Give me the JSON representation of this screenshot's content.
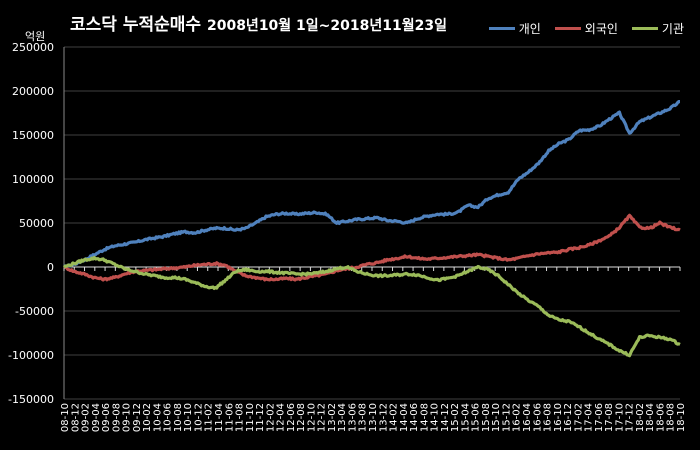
{
  "chart_data": {
    "type": "line",
    "title": "코스닥 누적순매수",
    "subtitle": "2008년10월 1일~2018년11월23일",
    "unit_label": "억원",
    "ylim": [
      -150000,
      250000
    ],
    "yticks": [
      250000,
      200000,
      150000,
      100000,
      50000,
      0,
      -50000,
      -100000,
      -150000
    ],
    "grid": true,
    "legend_position": "top-right",
    "x_ticks": [
      "08-10",
      "08-12",
      "09-02",
      "09-04",
      "09-06",
      "09-08",
      "09-10",
      "09-12",
      "10-02",
      "10-04",
      "10-06",
      "10-08",
      "10-10",
      "10-12",
      "11-02",
      "11-04",
      "11-06",
      "11-08",
      "11-10",
      "11-12",
      "12-02",
      "12-04",
      "12-06",
      "12-08",
      "12-10",
      "12-12",
      "13-02",
      "13-04",
      "13-06",
      "13-08",
      "13-10",
      "13-12",
      "14-02",
      "14-04",
      "14-06",
      "14-08",
      "14-10",
      "14-12",
      "15-02",
      "15-04",
      "15-06",
      "15-08",
      "15-10",
      "15-12",
      "16-02",
      "16-04",
      "16-06",
      "16-08",
      "16-10",
      "16-12",
      "17-02",
      "17-04",
      "17-06",
      "17-08",
      "17-10",
      "17-12",
      "18-02",
      "18-04",
      "18-06",
      "18-08",
      "18-10"
    ],
    "series": [
      {
        "name": "개인",
        "color": "#4f81bd",
        "values": [
          0,
          3000,
          8000,
          14000,
          20000,
          24000,
          26000,
          28000,
          31000,
          33000,
          35000,
          38000,
          40000,
          39000,
          42000,
          44000,
          44000,
          42000,
          44000,
          50000,
          57000,
          60000,
          61000,
          60000,
          61000,
          62000,
          60000,
          50000,
          52000,
          54000,
          55000,
          56000,
          53000,
          52000,
          50000,
          55000,
          58000,
          60000,
          60000,
          62000,
          70000,
          68000,
          78000,
          82000,
          85000,
          100000,
          108000,
          118000,
          132000,
          140000,
          145000,
          155000,
          156000,
          160000,
          168000,
          175000,
          152000,
          165000,
          170000,
          175000,
          180000,
          188000
        ]
      },
      {
        "name": "외국인",
        "color": "#c0504d",
        "values": [
          0,
          -5000,
          -8000,
          -12000,
          -14000,
          -12000,
          -8000,
          -5000,
          -4000,
          -3000,
          -2000,
          -1000,
          0,
          2000,
          3000,
          4000,
          2000,
          -5000,
          -10000,
          -12000,
          -14000,
          -14000,
          -13000,
          -14000,
          -12000,
          -10000,
          -8000,
          -4000,
          -2000,
          0,
          3000,
          5000,
          8000,
          10000,
          12000,
          10000,
          9000,
          10000,
          11000,
          12000,
          13000,
          14000,
          12000,
          10000,
          8000,
          10000,
          13000,
          15000,
          16000,
          17000,
          20000,
          22000,
          25000,
          30000,
          35000,
          45000,
          58000,
          45000,
          44000,
          50000,
          45000,
          42000
        ]
      },
      {
        "name": "기관",
        "color": "#9bbb59",
        "values": [
          0,
          4000,
          8000,
          10000,
          8000,
          3000,
          -2000,
          -5000,
          -8000,
          -10000,
          -12000,
          -12000,
          -14000,
          -18000,
          -22000,
          -24000,
          -15000,
          -5000,
          -3000,
          -5000,
          -5000,
          -6000,
          -7000,
          -8000,
          -8000,
          -7000,
          -5000,
          -2000,
          0,
          -5000,
          -8000,
          -10000,
          -10000,
          -9000,
          -8000,
          -9000,
          -12000,
          -15000,
          -13000,
          -10000,
          -5000,
          0,
          -3000,
          -10000,
          -20000,
          -30000,
          -38000,
          -45000,
          -55000,
          -60000,
          -62000,
          -68000,
          -75000,
          -82000,
          -88000,
          -95000,
          -100000,
          -80000,
          -78000,
          -80000,
          -82000,
          -88000
        ]
      }
    ]
  }
}
